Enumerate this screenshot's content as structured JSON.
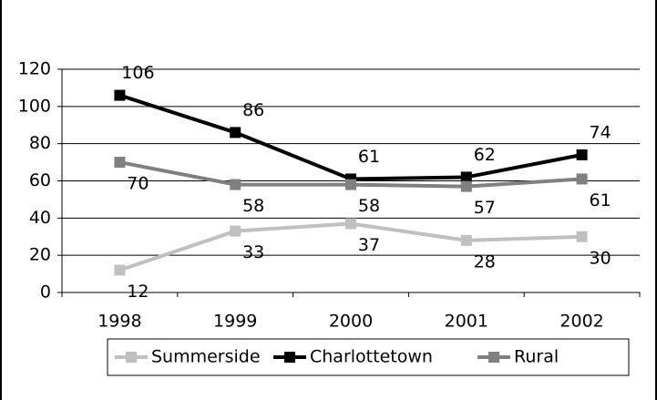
{
  "chart_data": {
    "type": "line",
    "categories": [
      "1998",
      "1999",
      "2000",
      "2001",
      "2002"
    ],
    "series": [
      {
        "name": "Summerside",
        "color": "#c0c0c0",
        "values": [
          12,
          33,
          37,
          28,
          30
        ]
      },
      {
        "name": "Charlottetown",
        "color": "#000000",
        "values": [
          106,
          86,
          61,
          62,
          74
        ]
      },
      {
        "name": "Rural",
        "color": "#808080",
        "values": [
          70,
          58,
          58,
          57,
          61
        ]
      }
    ],
    "ylim": [
      0,
      120
    ],
    "yticks": [
      0,
      20,
      40,
      60,
      80,
      100,
      120
    ],
    "grid": true,
    "legend": "bottom"
  }
}
